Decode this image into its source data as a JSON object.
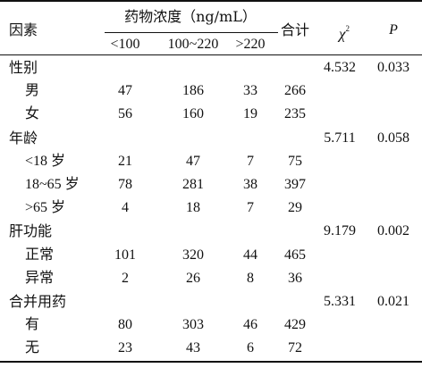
{
  "header": {
    "factor": "因素",
    "drug_concentration": "药物浓度（ng/mL）",
    "columns": [
      "<100",
      "100~220",
      ">220"
    ],
    "total": "合计",
    "chi_symbol": "χ",
    "chi_superscript": "2",
    "p": "P"
  },
  "groups": [
    {
      "label": "性别",
      "chi2": "4.532",
      "p": "0.033",
      "rows": [
        {
          "label": "男",
          "values": [
            "47",
            "186",
            "33"
          ],
          "total": "266"
        },
        {
          "label": "女",
          "values": [
            "56",
            "160",
            "19"
          ],
          "total": "235"
        }
      ]
    },
    {
      "label": "年龄",
      "chi2": "5.711",
      "p": "0.058",
      "rows": [
        {
          "label": "<18 岁",
          "values": [
            "21",
            "47",
            "7"
          ],
          "total": "75"
        },
        {
          "label": "18~65 岁",
          "values": [
            "78",
            "281",
            "38"
          ],
          "total": "397"
        },
        {
          "label": ">65 岁",
          "values": [
            "4",
            "18",
            "7"
          ],
          "total": "29"
        }
      ]
    },
    {
      "label": "肝功能",
      "chi2": "9.179",
      "p": "0.002",
      "rows": [
        {
          "label": "正常",
          "values": [
            "101",
            "320",
            "44"
          ],
          "total": "465"
        },
        {
          "label": "异常",
          "values": [
            "2",
            "26",
            "8"
          ],
          "total": "36"
        }
      ]
    },
    {
      "label": "合并用药",
      "chi2": "5.331",
      "p": "0.021",
      "rows": [
        {
          "label": "有",
          "values": [
            "80",
            "303",
            "46"
          ],
          "total": "429"
        },
        {
          "label": "无",
          "values": [
            "23",
            "43",
            "6"
          ],
          "total": "72"
        }
      ]
    }
  ]
}
